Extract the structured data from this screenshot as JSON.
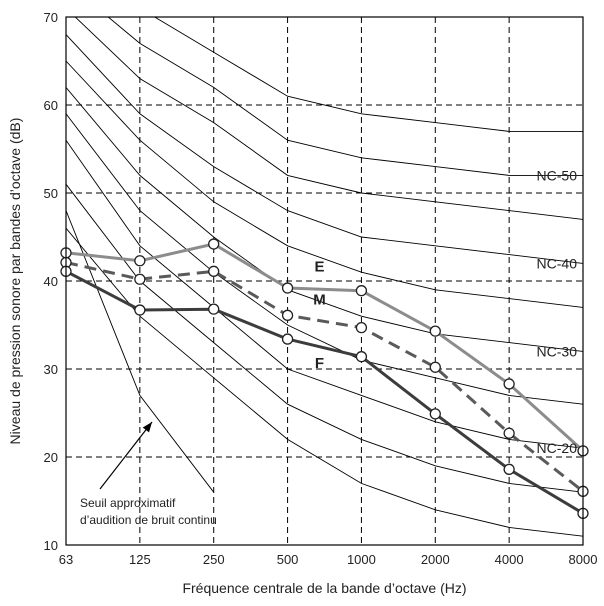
{
  "chart_data": {
    "type": "line",
    "xlabel": "Fréquence centrale de la bande d’octave (Hz)",
    "ylabel": "Niveau de pression sonore par bandes d’octave (dB)",
    "x_ticks": [
      "63",
      "125",
      "250",
      "500",
      "1000",
      "2000",
      "4000",
      "8000"
    ],
    "ylim": [
      10,
      70
    ],
    "y_ticks": [
      10,
      20,
      30,
      40,
      50,
      60,
      70
    ],
    "grid": true,
    "x_scale": "octave",
    "series": [
      {
        "name": "E",
        "style": "solid",
        "color": "#8c8c8c",
        "values": [
          43.2,
          42.3,
          44.2,
          39.2,
          38.9,
          34.3,
          28.3,
          20.7
        ]
      },
      {
        "name": "M",
        "style": "dashed",
        "color": "#5a5a5a",
        "values": [
          42.1,
          40.2,
          41.1,
          36.1,
          34.7,
          30.2,
          22.7,
          16.1
        ]
      },
      {
        "name": "F",
        "style": "solid",
        "color": "#3c3c3c",
        "values": [
          41.1,
          36.7,
          36.8,
          33.4,
          31.4,
          24.9,
          18.6,
          13.6
        ]
      }
    ],
    "nc_curves": [
      {
        "label": "",
        "values": [
          46,
          36,
          29,
          22,
          17,
          14,
          12,
          11
        ]
      },
      {
        "label": "",
        "values": [
          51,
          40,
          33,
          26,
          22,
          19,
          17,
          16
        ]
      },
      {
        "label": "NC-20",
        "values": [
          56,
          44,
          37,
          30,
          27,
          24,
          22,
          21
        ]
      },
      {
        "label": "",
        "values": [
          59,
          48,
          41,
          35,
          31,
          29,
          27,
          26
        ]
      },
      {
        "label": "NC-30",
        "values": [
          62,
          52,
          45,
          39,
          36,
          34,
          33,
          32
        ]
      },
      {
        "label": "",
        "values": [
          65,
          56,
          49,
          44,
          41,
          39,
          38,
          37
        ]
      },
      {
        "label": "NC-40",
        "values": [
          68,
          59,
          53,
          48,
          45,
          44,
          43,
          42
        ]
      },
      {
        "label": "",
        "values": [
          71,
          63,
          58,
          52,
          50,
          49,
          48,
          47
        ]
      },
      {
        "label": "NC-50",
        "values": [
          74,
          67,
          62,
          56,
          54,
          53,
          52,
          52
        ]
      },
      {
        "label": "",
        "values": [
          77,
          71,
          66,
          61,
          59,
          58,
          57,
          57
        ]
      }
    ],
    "threshold_curve": {
      "values": [
        48,
        27,
        16
      ]
    },
    "annotation": {
      "line1": "Seuil approximatif",
      "line2": "d’audition de bruit continu"
    }
  }
}
